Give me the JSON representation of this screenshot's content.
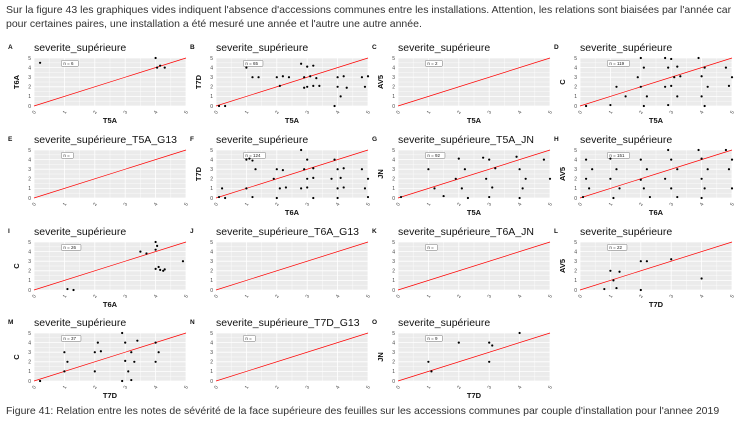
{
  "intro_text": "Sur la figure 43 les graphiques vides indiquent l'absence d'accessions communes entre les installations. Attention, les relations sont biaisées par l'année car pour certaines paires, une installation a été mesuré une année et l'autre une autre année.",
  "caption": "Figure 41: Relation entre les notes de sévérité de la face supérieure des feuilles sur les accessions communes par couple d'installation pour l'annee 2019",
  "colors": {
    "panel_bg": "#ebebeb",
    "grid": "#ffffff",
    "line": "#ff0000",
    "point": "#000000"
  },
  "chart_data": [
    {
      "letter": "A",
      "title": "severite_supérieure",
      "xlabel": "T5A",
      "ylabel": "T6A",
      "n_label": "n = 6",
      "xlim": [
        0,
        5
      ],
      "ylim": [
        0,
        5
      ],
      "xticks": [
        "0",
        "1",
        "2",
        "3",
        "4",
        "5"
      ],
      "yticks": [
        "0",
        "1",
        "2",
        "3",
        "4",
        "5"
      ],
      "points": [
        [
          0.2,
          4.5
        ],
        [
          4.0,
          5.0
        ],
        [
          4.05,
          4.0
        ],
        [
          4.15,
          4.2
        ],
        [
          4.3,
          4.0
        ]
      ]
    },
    {
      "letter": "B",
      "title": "severite_supérieure",
      "xlabel": "T5A",
      "ylabel": "T7D",
      "n_label": "n = 65",
      "xlim": [
        0,
        5
      ],
      "ylim": [
        0,
        5
      ],
      "xticks": [
        "0",
        "1",
        "2",
        "3",
        "4",
        "5"
      ],
      "yticks": [
        "0",
        "1",
        "2",
        "3",
        "4",
        "5"
      ],
      "points": [
        [
          0.1,
          0
        ],
        [
          0.3,
          0
        ],
        [
          1.0,
          4.0
        ],
        [
          1.2,
          3.0
        ],
        [
          1.4,
          3.0
        ],
        [
          2.0,
          3.0
        ],
        [
          2.2,
          3.1
        ],
        [
          2.4,
          3.0
        ],
        [
          2.1,
          2.1
        ],
        [
          2.8,
          4.4
        ],
        [
          3.0,
          4.1
        ],
        [
          3.2,
          4.2
        ],
        [
          2.9,
          3.0
        ],
        [
          3.1,
          3.1
        ],
        [
          3.3,
          2.9
        ],
        [
          3.0,
          2.0
        ],
        [
          3.2,
          2.1
        ],
        [
          2.9,
          1.9
        ],
        [
          3.4,
          2.1
        ],
        [
          4.0,
          3.0
        ],
        [
          4.2,
          3.1
        ],
        [
          4.0,
          2.0
        ],
        [
          4.1,
          1.0
        ],
        [
          4.3,
          1.9
        ],
        [
          3.9,
          0
        ],
        [
          4.8,
          3.0
        ],
        [
          5.0,
          3.1
        ],
        [
          4.9,
          2.0
        ]
      ]
    },
    {
      "letter": "C",
      "title": "severite_supérieure",
      "xlabel": "T5A",
      "ylabel": "AV5",
      "n_label": "n = 2",
      "xlim": [
        0,
        5
      ],
      "ylim": [
        0,
        5
      ],
      "xticks": [
        "0",
        "1",
        "2",
        "3",
        "4",
        "5"
      ],
      "yticks": [
        "0",
        "1",
        "2",
        "3",
        "4",
        "5"
      ],
      "points": []
    },
    {
      "letter": "D",
      "title": "severite_supérieure",
      "xlabel": "T5A",
      "ylabel": "C",
      "n_label": "n = 119",
      "xlim": [
        0,
        5
      ],
      "ylim": [
        0,
        5
      ],
      "xticks": [
        "0",
        "1",
        "2",
        "3",
        "4",
        "5"
      ],
      "yticks": [
        "0",
        "1",
        "2",
        "3",
        "4",
        "5"
      ],
      "points": [
        [
          0.2,
          0
        ],
        [
          1.0,
          0.1
        ],
        [
          1.2,
          2.0
        ],
        [
          1.5,
          1.0
        ],
        [
          2.0,
          5.0
        ],
        [
          2.1,
          4.0
        ],
        [
          1.9,
          3.0
        ],
        [
          2.0,
          2.0
        ],
        [
          2.2,
          1.0
        ],
        [
          2.1,
          0
        ],
        [
          2.8,
          5.0
        ],
        [
          3.0,
          4.9
        ],
        [
          3.2,
          4.1
        ],
        [
          2.9,
          4.0
        ],
        [
          3.1,
          3.0
        ],
        [
          3.3,
          3.1
        ],
        [
          2.8,
          2.0
        ],
        [
          3.0,
          2.1
        ],
        [
          3.2,
          1.0
        ],
        [
          2.9,
          0.1
        ],
        [
          3.9,
          5.0
        ],
        [
          4.1,
          4.0
        ],
        [
          4.0,
          3.1
        ],
        [
          4.2,
          2.0
        ],
        [
          4.0,
          1.0
        ],
        [
          4.1,
          0
        ],
        [
          4.8,
          4.0
        ],
        [
          5.0,
          3.0
        ],
        [
          4.9,
          2.1
        ]
      ]
    },
    {
      "letter": "E",
      "title": "severite_supérieure_T5A_G13",
      "xlabel": "",
      "ylabel": "",
      "n_label": "n =",
      "xlim": [
        0,
        5
      ],
      "ylim": [
        0,
        5
      ],
      "xticks": [
        "0",
        "1",
        "2",
        "3",
        "4",
        "5"
      ],
      "yticks": [
        "0",
        "1",
        "2",
        "3",
        "4",
        "5"
      ],
      "points": []
    },
    {
      "letter": "F",
      "title": "severite_supérieure",
      "xlabel": "T6A",
      "ylabel": "T7D",
      "n_label": "n = 124",
      "xlim": [
        0,
        5
      ],
      "ylim": [
        0,
        5
      ],
      "xticks": [
        "0",
        "1",
        "2",
        "3",
        "4",
        "5"
      ],
      "yticks": [
        "0",
        "1",
        "2",
        "3",
        "4",
        "5"
      ],
      "points": [
        [
          0.1,
          0.1
        ],
        [
          0.3,
          0
        ],
        [
          0.2,
          1.0
        ],
        [
          1.0,
          4.0
        ],
        [
          1.1,
          4.1
        ],
        [
          1.2,
          3.9
        ],
        [
          1.3,
          3.0
        ],
        [
          1.0,
          1.0
        ],
        [
          1.2,
          0.1
        ],
        [
          2.0,
          3.0
        ],
        [
          2.2,
          2.9
        ],
        [
          1.9,
          2.0
        ],
        [
          2.1,
          1.0
        ],
        [
          2.3,
          1.1
        ],
        [
          2.0,
          0
        ],
        [
          2.8,
          5.0
        ],
        [
          3.0,
          4.0
        ],
        [
          3.2,
          3.1
        ],
        [
          2.9,
          3.0
        ],
        [
          3.0,
          2.0
        ],
        [
          3.2,
          2.1
        ],
        [
          2.8,
          1.0
        ],
        [
          3.0,
          1.1
        ],
        [
          3.2,
          0
        ],
        [
          3.9,
          4.0
        ],
        [
          4.0,
          3.0
        ],
        [
          4.2,
          3.1
        ],
        [
          3.8,
          2.0
        ],
        [
          4.1,
          2.1
        ],
        [
          4.0,
          1.0
        ],
        [
          4.2,
          1.1
        ],
        [
          4.0,
          0
        ],
        [
          4.8,
          3.0
        ],
        [
          5.0,
          2.0
        ],
        [
          4.9,
          1.0
        ],
        [
          5.0,
          0.1
        ]
      ]
    },
    {
      "letter": "G",
      "title": "severite_supérieure_T5A_JN",
      "xlabel": "T5A",
      "ylabel": "JN",
      "n_label": "n = 92",
      "xlim": [
        0,
        5
      ],
      "ylim": [
        0,
        5
      ],
      "xticks": [
        "0",
        "1",
        "2",
        "3",
        "4",
        "5"
      ],
      "yticks": [
        "0",
        "1",
        "2",
        "3",
        "4",
        "5"
      ],
      "points": [
        [
          0.1,
          0.1
        ],
        [
          1.0,
          3.0
        ],
        [
          1.2,
          1.0
        ],
        [
          1.5,
          0.2
        ],
        [
          2.0,
          4.1
        ],
        [
          2.2,
          3.0
        ],
        [
          1.9,
          2.0
        ],
        [
          2.1,
          1.0
        ],
        [
          2.3,
          0
        ],
        [
          2.8,
          4.2
        ],
        [
          3.0,
          4.0
        ],
        [
          3.2,
          3.1
        ],
        [
          2.9,
          2.0
        ],
        [
          3.1,
          1.1
        ],
        [
          3.0,
          0.1
        ],
        [
          3.9,
          4.3
        ],
        [
          4.0,
          3.0
        ],
        [
          4.2,
          2.0
        ],
        [
          4.1,
          1.0
        ],
        [
          4.0,
          0
        ],
        [
          4.8,
          4.0
        ],
        [
          5.0,
          2.0
        ]
      ]
    },
    {
      "letter": "H",
      "title": "severite_supérieure",
      "xlabel": "T6A",
      "ylabel": "AV5",
      "n_label": "n = 151",
      "xlim": [
        0,
        5
      ],
      "ylim": [
        0,
        5
      ],
      "xticks": [
        "0",
        "1",
        "2",
        "3",
        "4",
        "5"
      ],
      "yticks": [
        "0",
        "1",
        "2",
        "3",
        "4",
        "5"
      ],
      "points": [
        [
          0.1,
          0.1
        ],
        [
          0.3,
          1.0
        ],
        [
          0.2,
          2.0
        ],
        [
          0.4,
          3.0
        ],
        [
          0.2,
          4.0
        ],
        [
          1.0,
          4.1
        ],
        [
          1.2,
          3.0
        ],
        [
          1.0,
          2.0
        ],
        [
          1.3,
          1.0
        ],
        [
          1.1,
          0
        ],
        [
          2.0,
          4.0
        ],
        [
          2.2,
          3.0
        ],
        [
          2.0,
          1.9
        ],
        [
          2.1,
          1.0
        ],
        [
          2.3,
          0.1
        ],
        [
          2.9,
          5.0
        ],
        [
          3.0,
          4.0
        ],
        [
          3.2,
          3.0
        ],
        [
          2.8,
          2.0
        ],
        [
          3.0,
          1.0
        ],
        [
          3.2,
          0.1
        ],
        [
          3.9,
          5.0
        ],
        [
          4.0,
          4.1
        ],
        [
          4.2,
          3.0
        ],
        [
          4.0,
          2.0
        ],
        [
          4.1,
          1.0
        ],
        [
          4.0,
          0
        ],
        [
          4.8,
          5.0
        ],
        [
          5.0,
          4.0
        ],
        [
          4.9,
          3.0
        ],
        [
          5.0,
          1.0
        ]
      ]
    },
    {
      "letter": "I",
      "title": "severite_supérieure",
      "xlabel": "T6A",
      "ylabel": "C",
      "n_label": "n = 26",
      "xlim": [
        0,
        5
      ],
      "ylim": [
        0,
        5
      ],
      "xticks": [
        "0",
        "1",
        "2",
        "3",
        "4",
        "5"
      ],
      "yticks": [
        "0",
        "1",
        "2",
        "3",
        "4",
        "5"
      ],
      "points": [
        [
          1.1,
          0.1
        ],
        [
          1.3,
          0
        ],
        [
          3.5,
          4.0
        ],
        [
          3.7,
          3.8
        ],
        [
          4.0,
          5.0
        ],
        [
          4.05,
          4.6
        ],
        [
          4.0,
          4.2
        ],
        [
          4.1,
          2.4
        ],
        [
          4.0,
          2.2
        ],
        [
          4.15,
          2.1
        ],
        [
          4.25,
          2.0
        ],
        [
          4.3,
          2.15
        ],
        [
          4.9,
          3.0
        ]
      ]
    },
    {
      "letter": "J",
      "title": "severite_supérieure_T6A_G13",
      "xlabel": "",
      "ylabel": "",
      "n_label": "",
      "xlim": [
        0,
        5
      ],
      "ylim": [
        0,
        5
      ],
      "xticks": [
        "0",
        "1",
        "2",
        "3",
        "4",
        "5"
      ],
      "yticks": [
        "0",
        "1",
        "2",
        "3",
        "4",
        "5"
      ],
      "points": []
    },
    {
      "letter": "K",
      "title": "severite_supérieure_T6A_JN",
      "xlabel": "",
      "ylabel": "",
      "n_label": "n =",
      "xlim": [
        0,
        5
      ],
      "ylim": [
        0,
        5
      ],
      "xticks": [
        "0",
        "1",
        "2",
        "3",
        "4",
        "5"
      ],
      "yticks": [
        "0",
        "1",
        "2",
        "3",
        "4",
        "5"
      ],
      "points": []
    },
    {
      "letter": "L",
      "title": "severite_supérieure",
      "xlabel": "T7D",
      "ylabel": "AV5",
      "n_label": "n = 22",
      "xlim": [
        0,
        5
      ],
      "ylim": [
        0,
        5
      ],
      "xticks": [
        "0",
        "1",
        "2",
        "3",
        "4",
        "5"
      ],
      "yticks": [
        "0",
        "1",
        "2",
        "3",
        "4",
        "5"
      ],
      "points": [
        [
          0.8,
          0.1
        ],
        [
          1.0,
          2.0
        ],
        [
          1.1,
          1.0
        ],
        [
          1.2,
          0.2
        ],
        [
          1.3,
          1.9
        ],
        [
          2.0,
          3.0
        ],
        [
          2.2,
          3.0
        ],
        [
          3.0,
          3.2
        ],
        [
          2.0,
          0
        ],
        [
          4.0,
          1.2
        ]
      ]
    },
    {
      "letter": "M",
      "title": "severite_supérieure",
      "xlabel": "T7D",
      "ylabel": "C",
      "n_label": "n = 37",
      "xlim": [
        0,
        5
      ],
      "ylim": [
        0,
        5
      ],
      "xticks": [
        "0",
        "1",
        "2",
        "3",
        "4",
        "5"
      ],
      "yticks": [
        "0",
        "1",
        "2",
        "3",
        "4",
        "5"
      ],
      "points": [
        [
          0.2,
          0
        ],
        [
          1.0,
          3.0
        ],
        [
          1.1,
          2.0
        ],
        [
          1.0,
          1.0
        ],
        [
          2.0,
          3.0
        ],
        [
          2.2,
          3.1
        ],
        [
          2.1,
          4.0
        ],
        [
          2.0,
          1.0
        ],
        [
          2.9,
          5.0
        ],
        [
          3.0,
          4.0
        ],
        [
          3.2,
          3.0
        ],
        [
          3.0,
          2.1
        ],
        [
          3.1,
          1.0
        ],
        [
          2.9,
          0
        ],
        [
          3.4,
          4.2
        ],
        [
          3.3,
          2.0
        ],
        [
          3.2,
          0.1
        ],
        [
          4.0,
          4.0
        ],
        [
          4.1,
          3.0
        ],
        [
          4.0,
          2.0
        ]
      ]
    },
    {
      "letter": "N",
      "title": "severite_supérieure_T7D_G13",
      "xlabel": "",
      "ylabel": "",
      "n_label": "n =",
      "xlim": [
        0,
        5
      ],
      "ylim": [
        0,
        5
      ],
      "xticks": [
        "0",
        "1",
        "2",
        "3",
        "4",
        "5"
      ],
      "yticks": [
        "0",
        "1",
        "2",
        "3",
        "4",
        "5"
      ],
      "points": []
    },
    {
      "letter": "O",
      "title": "severite_supérieure",
      "xlabel": "T7D",
      "ylabel": "JN",
      "n_label": "n = 9",
      "xlim": [
        0,
        5
      ],
      "ylim": [
        0,
        5
      ],
      "xticks": [
        "0",
        "1",
        "2",
        "3",
        "4",
        "5"
      ],
      "yticks": [
        "0",
        "1",
        "2",
        "3",
        "4",
        "5"
      ],
      "points": [
        [
          1.0,
          2.0
        ],
        [
          1.1,
          1.0
        ],
        [
          2.0,
          4.0
        ],
        [
          3.0,
          4.0
        ],
        [
          3.1,
          3.7
        ],
        [
          4.0,
          5.0
        ],
        [
          3.0,
          2.0
        ]
      ]
    }
  ]
}
